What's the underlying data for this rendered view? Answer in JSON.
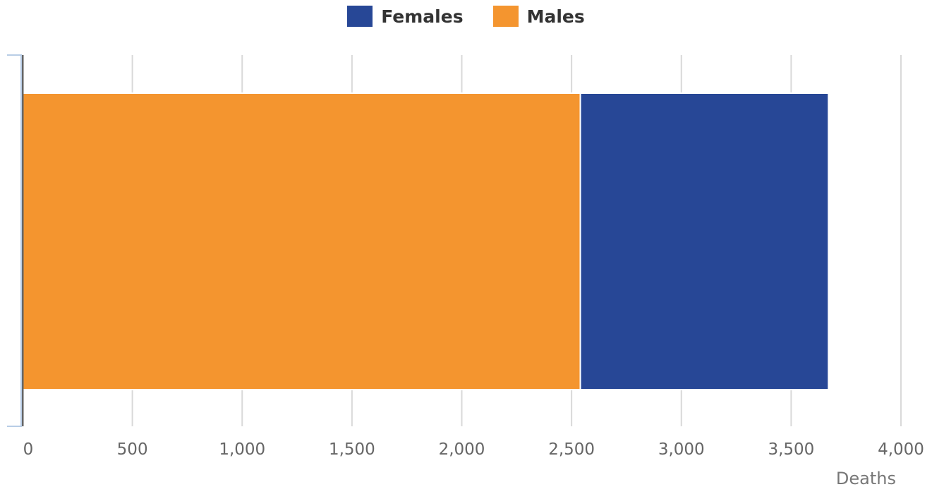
{
  "chart_data": {
    "type": "bar",
    "orientation": "horizontal",
    "stacked": true,
    "categories": [
      ""
    ],
    "series": [
      {
        "name": "Males",
        "values": [
          2540
        ],
        "color": "#F4952F"
      },
      {
        "name": "Females",
        "values": [
          1130
        ],
        "color": "#274796"
      }
    ],
    "legend": {
      "position": "top-center",
      "items": [
        {
          "label": "Females",
          "color": "#274796"
        },
        {
          "label": "Males",
          "color": "#F4952F"
        }
      ]
    },
    "xlabel": "Deaths",
    "xlim": [
      0,
      4000
    ],
    "x_ticks": [
      0,
      500,
      1000,
      1500,
      2000,
      2500,
      3000,
      3500,
      4000
    ],
    "x_tick_labels": [
      "0",
      "500",
      "1,000",
      "1,500",
      "2,000",
      "2,500",
      "3,000",
      "3,500",
      "4,000"
    ],
    "grid": true
  }
}
